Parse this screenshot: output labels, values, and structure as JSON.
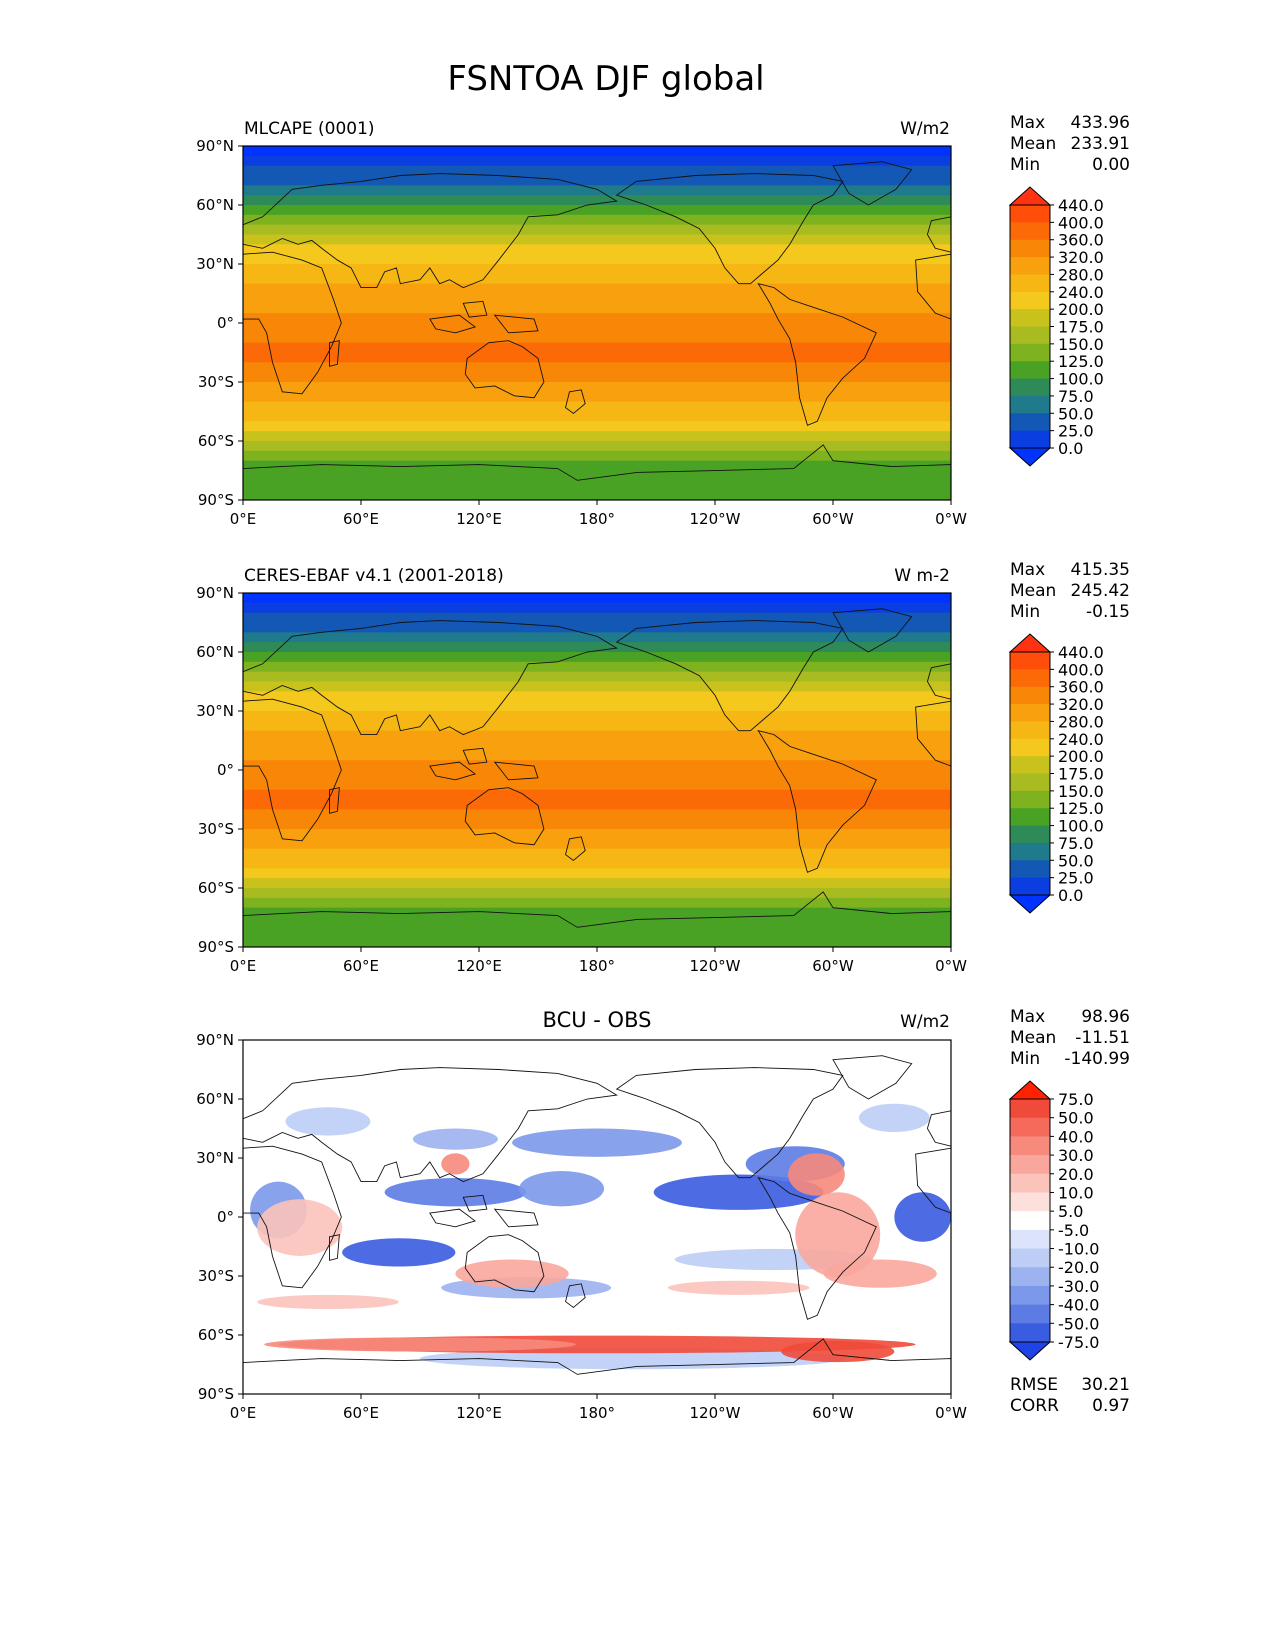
{
  "figure_title": "FSNTOA DJF global",
  "axes": {
    "lat_ticks": [
      "90°N",
      "60°N",
      "30°N",
      "0°",
      "30°S",
      "60°S",
      "90°S"
    ],
    "lon_ticks": [
      "0°E",
      "60°E",
      "120°E",
      "180°",
      "120°W",
      "60°W",
      "0°W"
    ]
  },
  "panels": [
    {
      "id": "model",
      "title": "MLCAPE (0001)",
      "centered_title": "",
      "units": "W/m2",
      "stats": [
        {
          "label": "Max",
          "value": "433.96"
        },
        {
          "label": "Mean",
          "value": "233.91"
        },
        {
          "label": "Min",
          "value": "0.00"
        }
      ],
      "colorbar_levels": [
        "440.0",
        "400.0",
        "360.0",
        "320.0",
        "280.0",
        "240.0",
        "200.0",
        "175.0",
        "150.0",
        "125.0",
        "100.0",
        "75.0",
        "50.0",
        "25.0",
        "0.0"
      ],
      "colorbar_colors": [
        "#ff3311",
        "#ff4d0a",
        "#fb6a07",
        "#f98707",
        "#f8a00d",
        "#f6b715",
        "#f4c81c",
        "#c9c21c",
        "#a8bb20",
        "#7eb31f",
        "#4aa224",
        "#2e8b57",
        "#1f7a8c",
        "#1358b4",
        "#0b3ee0",
        "#0033ff"
      ],
      "footer_stats": []
    },
    {
      "id": "obs",
      "title": "CERES-EBAF v4.1 (2001-2018)",
      "centered_title": "",
      "units": "W m-2",
      "stats": [
        {
          "label": "Max",
          "value": "415.35"
        },
        {
          "label": "Mean",
          "value": "245.42"
        },
        {
          "label": "Min",
          "value": "-0.15"
        }
      ],
      "colorbar_levels": [
        "440.0",
        "400.0",
        "360.0",
        "320.0",
        "280.0",
        "240.0",
        "200.0",
        "175.0",
        "150.0",
        "125.0",
        "100.0",
        "75.0",
        "50.0",
        "25.0",
        "0.0"
      ],
      "colorbar_colors": [
        "#ff3311",
        "#ff4d0a",
        "#fb6a07",
        "#f98707",
        "#f8a00d",
        "#f6b715",
        "#f4c81c",
        "#c9c21c",
        "#a8bb20",
        "#7eb31f",
        "#4aa224",
        "#2e8b57",
        "#1f7a8c",
        "#1358b4",
        "#0b3ee0",
        "#0033ff"
      ],
      "footer_stats": []
    },
    {
      "id": "diff",
      "title": "",
      "centered_title": "BCU - OBS",
      "units": "W/m2",
      "stats": [
        {
          "label": "Max",
          "value": "98.96"
        },
        {
          "label": "Mean",
          "value": "-11.51"
        },
        {
          "label": "Min",
          "value": "-140.99"
        }
      ],
      "colorbar_levels": [
        "75.0",
        "50.0",
        "40.0",
        "30.0",
        "20.0",
        "10.0",
        "5.0",
        "-5.0",
        "-10.0",
        "-20.0",
        "-30.0",
        "-40.0",
        "-50.0",
        "-75.0"
      ],
      "colorbar_colors": [
        "#ff2200",
        "#f04a3a",
        "#f56a5a",
        "#f78a7c",
        "#f9a79c",
        "#fbc3ba",
        "#fde0dc",
        "#ffffff",
        "#dbe4fb",
        "#bccdf6",
        "#9cb3f0",
        "#7c98ea",
        "#5c7ce4",
        "#3a5ce0",
        "#1f43e6"
      ],
      "footer_stats": [
        {
          "label": "RMSE",
          "value": "30.21"
        },
        {
          "label": "CORR",
          "value": "0.97"
        }
      ]
    }
  ]
}
